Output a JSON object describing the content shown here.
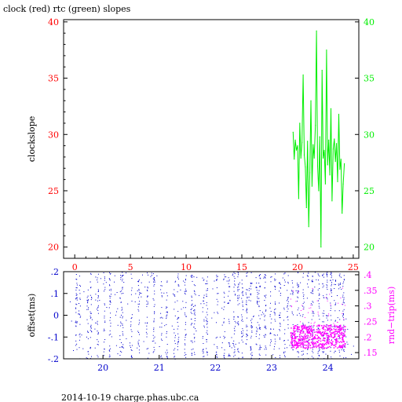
{
  "title": "clock (red) rtc (green) slopes",
  "footer": "2014-10-19  charge.phas.ubc.ca",
  "colors": {
    "clock": "#ff0000",
    "rtc": "#00ee00",
    "offset": "#0000cc",
    "rndtrip": "#ff00ff",
    "frame": "#000000"
  },
  "chart_data": [
    {
      "type": "line",
      "name": "slopes",
      "ylabel": "clockslope",
      "x_ticks": [
        0,
        5,
        10,
        15,
        20,
        25
      ],
      "xlim": [
        -1,
        25.5
      ],
      "ylim": [
        19,
        40.2
      ],
      "y_ticks": [
        20,
        25,
        30,
        35,
        40
      ],
      "right_ylim": [
        19,
        40.2
      ],
      "right_y_ticks": [
        20,
        25,
        30,
        35,
        40
      ],
      "grid": false,
      "series": [
        {
          "color": "rtc",
          "x": [
            19.6,
            19.7,
            19.8,
            19.9,
            20.0,
            20.1,
            20.2,
            20.3,
            20.4,
            20.5,
            20.6,
            20.7,
            20.8,
            20.9,
            21.0,
            21.1,
            21.2,
            21.3,
            21.4,
            21.5,
            21.6,
            21.7,
            21.8,
            21.9,
            22.0,
            22.1,
            22.2,
            22.3,
            22.4,
            22.5,
            22.6,
            22.7,
            22.8,
            22.9,
            23.0,
            23.1,
            23.2,
            23.3,
            23.4,
            23.5,
            23.6,
            23.7,
            23.8,
            23.9,
            24.0,
            24.1,
            24.2
          ],
          "y": [
            30.2,
            27.8,
            29.5,
            28.6,
            29.0,
            24.3,
            31.0,
            27.9,
            29.3,
            35.3,
            28.2,
            27.1,
            23.5,
            29.4,
            21.8,
            26.6,
            33.0,
            25.4,
            29.1,
            27.9,
            30.8,
            39.2,
            27.2,
            25.0,
            29.8,
            20.0,
            35.7,
            27.9,
            28.6,
            25.6,
            37.5,
            27.3,
            29.5,
            26.4,
            32.3,
            24.1,
            28.7,
            29.6,
            27.6,
            29.2,
            25.8,
            31.8,
            26.9,
            27.8,
            23.0,
            25.6,
            27.4
          ]
        }
      ]
    },
    {
      "type": "scatter",
      "name": "offset",
      "ylabel": "offset(ms)",
      "right_ylabel": "rnd−trip(ms)",
      "xlim": [
        19.3,
        24.55
      ],
      "x_ticks": [
        20,
        21,
        22,
        23,
        24
      ],
      "ylim": [
        -0.2,
        0.2
      ],
      "y_ticks": [
        -0.2,
        -0.1,
        0,
        0.1,
        0.2
      ],
      "right_ylim": [
        0.13,
        0.41
      ],
      "right_y_ticks": [
        0.15,
        0.2,
        0.25,
        0.3,
        0.35,
        0.4
      ],
      "offset_bands": [
        19.52,
        19.58,
        19.72,
        19.78,
        19.9,
        20.02,
        20.12,
        20.31,
        20.34,
        20.5,
        20.63,
        20.78,
        20.9,
        21.03,
        21.13,
        21.27,
        21.33,
        21.46,
        21.57,
        21.62,
        21.78,
        21.84,
        22.02,
        22.15,
        22.24,
        22.33,
        22.4,
        22.47,
        22.55,
        22.63,
        22.73,
        22.78,
        22.88,
        22.98,
        23.05,
        23.14,
        23.22,
        23.28,
        23.37,
        23.46,
        23.55,
        23.64,
        23.72,
        23.83,
        23.91,
        23.98,
        24.05,
        24.12,
        24.2,
        24.27
      ],
      "rndtrip_band": {
        "x": [
          23.33,
          24.3
        ],
        "y": [
          0.165,
          0.24
        ]
      },
      "grid": false
    }
  ]
}
